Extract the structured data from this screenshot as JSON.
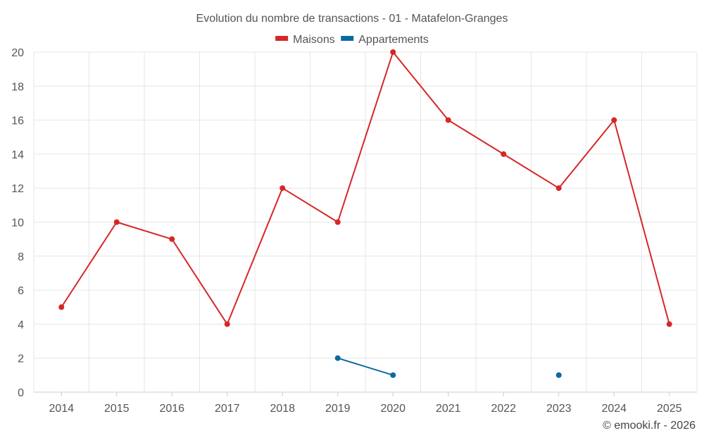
{
  "chart_data": {
    "type": "line",
    "title": "Evolution du nombre de transactions - 01 - Matafelon-Granges",
    "categories": [
      "2014",
      "2015",
      "2016",
      "2017",
      "2018",
      "2019",
      "2020",
      "2021",
      "2022",
      "2023",
      "2024",
      "2025"
    ],
    "ylim": [
      0,
      20
    ],
    "yticks": [
      0,
      2,
      4,
      6,
      8,
      10,
      12,
      14,
      16,
      18,
      20
    ],
    "grid": true,
    "legend_position": "top-center",
    "series": [
      {
        "name": "Maisons",
        "color": "#d62728",
        "values": [
          5,
          10,
          9,
          4,
          12,
          10,
          20,
          16,
          14,
          12,
          16,
          4
        ]
      },
      {
        "name": "Appartements",
        "color": "#0b6aa2",
        "values": [
          null,
          null,
          null,
          null,
          null,
          2,
          1,
          null,
          null,
          1,
          null,
          null
        ]
      }
    ],
    "credit": "© emooki.fr - 2026"
  }
}
